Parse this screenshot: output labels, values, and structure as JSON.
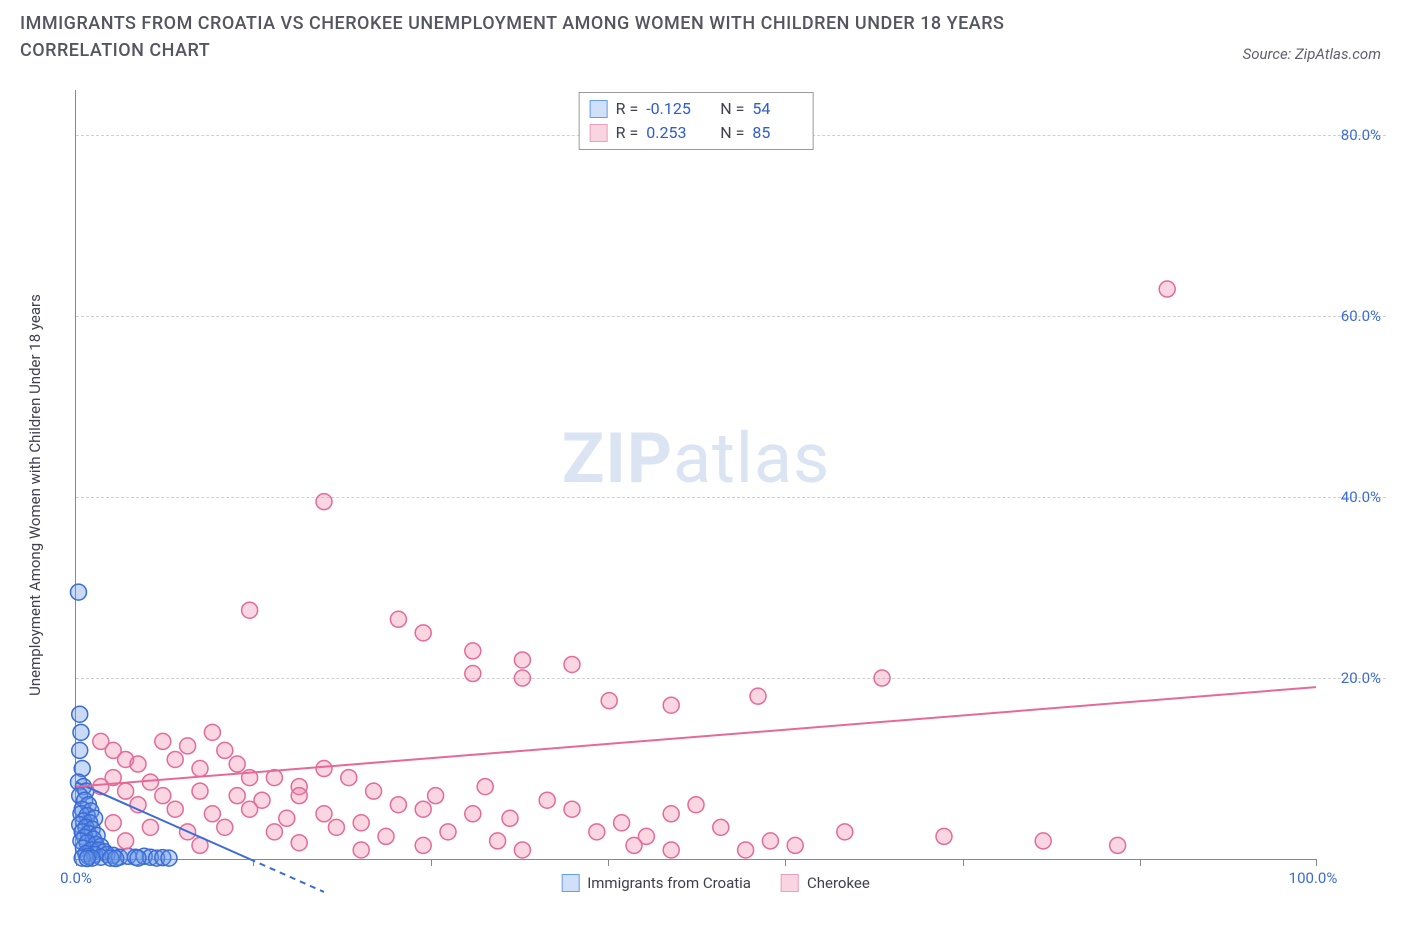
{
  "title": "IMMIGRANTS FROM CROATIA VS CHEROKEE UNEMPLOYMENT AMONG WOMEN WITH CHILDREN UNDER 18 YEARS CORRELATION CHART",
  "source_label": "Source: ZipAtlas.com",
  "y_axis_label": "Unemployment Among Women with Children Under 18 years",
  "watermark_bold": "ZIP",
  "watermark_light": "atlas",
  "chart": {
    "type": "scatter",
    "xlim": [
      0,
      100
    ],
    "ylim": [
      0,
      85
    ],
    "x_ticks": [
      0,
      14.3,
      28.6,
      42.9,
      57.2,
      71.5,
      85.8,
      100
    ],
    "x_tick_labels": {
      "0": "0.0%",
      "100": "100.0%"
    },
    "y_ticks": [
      20,
      40,
      60,
      80
    ],
    "y_tick_labels": [
      "20.0%",
      "40.0%",
      "60.0%",
      "80.0%"
    ],
    "grid_color": "#d0d0d0",
    "axis_color": "#888888",
    "background_color": "#ffffff",
    "marker_radius": 8,
    "marker_stroke_width": 1.5,
    "line_width": 2,
    "series": [
      {
        "name": "Immigrants from Croatia",
        "color_fill": "rgba(100,150,230,0.35)",
        "color_stroke": "#3b6bd6",
        "swatch_fill": "#cfe0f8",
        "swatch_border": "#6a9de8",
        "r_label": "R =",
        "r_value": "-0.125",
        "n_label": "N =",
        "n_value": "54",
        "trend": {
          "x1": 0,
          "y1": 8.5,
          "x2": 14,
          "y2": 0,
          "dash_extend_x": 14,
          "dash_extend_x2": 20
        },
        "points": [
          [
            0.2,
            29.5
          ],
          [
            0.3,
            16
          ],
          [
            0.4,
            14
          ],
          [
            0.3,
            12
          ],
          [
            0.5,
            10
          ],
          [
            0.2,
            8.5
          ],
          [
            0.6,
            8
          ],
          [
            0.8,
            7.5
          ],
          [
            0.3,
            7
          ],
          [
            0.7,
            6.5
          ],
          [
            1.0,
            6
          ],
          [
            0.5,
            5.5
          ],
          [
            1.2,
            5.3
          ],
          [
            0.4,
            5
          ],
          [
            0.9,
            4.8
          ],
          [
            1.5,
            4.5
          ],
          [
            0.6,
            4.2
          ],
          [
            1.1,
            4
          ],
          [
            0.3,
            3.8
          ],
          [
            0.8,
            3.5
          ],
          [
            1.3,
            3.3
          ],
          [
            0.5,
            3
          ],
          [
            1.0,
            2.8
          ],
          [
            1.7,
            2.6
          ],
          [
            0.7,
            2.4
          ],
          [
            1.4,
            2.2
          ],
          [
            0.4,
            2
          ],
          [
            0.9,
            1.8
          ],
          [
            1.6,
            1.6
          ],
          [
            2.0,
            1.4
          ],
          [
            0.6,
            1.2
          ],
          [
            1.2,
            1
          ],
          [
            1.8,
            1
          ],
          [
            2.3,
            0.8
          ],
          [
            0.8,
            0.6
          ],
          [
            1.5,
            0.5
          ],
          [
            2.5,
            0.5
          ],
          [
            3.0,
            0.4
          ],
          [
            1.0,
            0.3
          ],
          [
            2.0,
            0.2
          ],
          [
            3.5,
            0.2
          ],
          [
            4.2,
            0.3
          ],
          [
            0.5,
            0.1
          ],
          [
            1.3,
            0.1
          ],
          [
            2.8,
            0.1
          ],
          [
            4.8,
            0.2
          ],
          [
            5.5,
            0.3
          ],
          [
            6.0,
            0.2
          ],
          [
            0.9,
            0.05
          ],
          [
            3.2,
            0.05
          ],
          [
            5.0,
            0.1
          ],
          [
            6.5,
            0.1
          ],
          [
            7.0,
            0.15
          ],
          [
            7.5,
            0.1
          ]
        ]
      },
      {
        "name": "Cherokee",
        "color_fill": "rgba(235,120,160,0.3)",
        "color_stroke": "#e56a97",
        "swatch_fill": "#f8d5e0",
        "swatch_border": "#eda0bc",
        "r_label": "R =",
        "r_value": "0.253",
        "n_label": "N =",
        "n_value": "85",
        "trend": {
          "x1": 0,
          "y1": 8,
          "x2": 100,
          "y2": 19
        },
        "points": [
          [
            88,
            63
          ],
          [
            20,
            39.5
          ],
          [
            14,
            27.5
          ],
          [
            26,
            26.5
          ],
          [
            28,
            25
          ],
          [
            32,
            23
          ],
          [
            36,
            22
          ],
          [
            40,
            21.5
          ],
          [
            65,
            20
          ],
          [
            32,
            20.5
          ],
          [
            36,
            20
          ],
          [
            43,
            17.5
          ],
          [
            55,
            18
          ],
          [
            48,
            17
          ],
          [
            2,
            13
          ],
          [
            3,
            12
          ],
          [
            7,
            13
          ],
          [
            9,
            12.5
          ],
          [
            11,
            14
          ],
          [
            4,
            11
          ],
          [
            5,
            10.5
          ],
          [
            8,
            11
          ],
          [
            12,
            12
          ],
          [
            14,
            9
          ],
          [
            10,
            10
          ],
          [
            13,
            10.5
          ],
          [
            16,
            9
          ],
          [
            18,
            8
          ],
          [
            20,
            10
          ],
          [
            22,
            9
          ],
          [
            3,
            9
          ],
          [
            6,
            8.5
          ],
          [
            2,
            8
          ],
          [
            4,
            7.5
          ],
          [
            7,
            7
          ],
          [
            10,
            7.5
          ],
          [
            13,
            7
          ],
          [
            15,
            6.5
          ],
          [
            18,
            7
          ],
          [
            24,
            7.5
          ],
          [
            26,
            6
          ],
          [
            29,
            7
          ],
          [
            33,
            8
          ],
          [
            38,
            6.5
          ],
          [
            5,
            6
          ],
          [
            8,
            5.5
          ],
          [
            11,
            5
          ],
          [
            14,
            5.5
          ],
          [
            17,
            4.5
          ],
          [
            20,
            5
          ],
          [
            23,
            4
          ],
          [
            28,
            5.5
          ],
          [
            32,
            5
          ],
          [
            35,
            4.5
          ],
          [
            40,
            5.5
          ],
          [
            44,
            4
          ],
          [
            48,
            5
          ],
          [
            50,
            6
          ],
          [
            3,
            4
          ],
          [
            6,
            3.5
          ],
          [
            9,
            3
          ],
          [
            12,
            3.5
          ],
          [
            16,
            3
          ],
          [
            21,
            3.5
          ],
          [
            25,
            2.5
          ],
          [
            30,
            3
          ],
          [
            34,
            2
          ],
          [
            42,
            3
          ],
          [
            46,
            2.5
          ],
          [
            52,
            3.5
          ],
          [
            56,
            2
          ],
          [
            62,
            3
          ],
          [
            4,
            2
          ],
          [
            10,
            1.5
          ],
          [
            18,
            1.8
          ],
          [
            23,
            1
          ],
          [
            28,
            1.5
          ],
          [
            36,
            1
          ],
          [
            45,
            1.5
          ],
          [
            54,
            1
          ],
          [
            70,
            2.5
          ],
          [
            78,
            2
          ],
          [
            84,
            1.5
          ],
          [
            58,
            1.5
          ],
          [
            48,
            1
          ]
        ]
      }
    ]
  },
  "bottom_legend": [
    {
      "label": "Immigrants from Croatia",
      "fill": "#cfe0f8",
      "border": "#6a9de8"
    },
    {
      "label": "Cherokee",
      "fill": "#f8d5e0",
      "border": "#eda0bc"
    }
  ]
}
